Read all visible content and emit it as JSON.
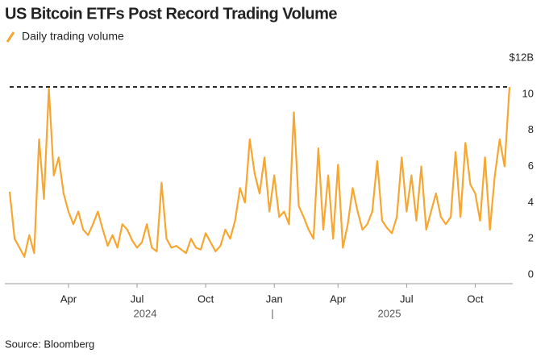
{
  "chart_data": {
    "type": "line",
    "title": "US Bitcoin ETFs Post Record Trading Volume",
    "source": "Source: Bloomberg",
    "series": [
      {
        "name": "Daily trading volume",
        "color": "#f7a631",
        "values": [
          4.6,
          2.0,
          1.5,
          1.0,
          2.2,
          1.2,
          7.5,
          4.2,
          10.3,
          5.5,
          6.5,
          4.5,
          3.5,
          2.8,
          3.5,
          2.5,
          2.2,
          2.8,
          3.5,
          2.5,
          1.6,
          2.2,
          1.5,
          2.8,
          2.5,
          1.9,
          1.5,
          1.8,
          2.8,
          1.5,
          1.3,
          5.1,
          2.0,
          1.5,
          1.6,
          1.4,
          1.2,
          2.0,
          1.5,
          1.4,
          2.3,
          1.8,
          1.3,
          1.6,
          2.5,
          2.0,
          3.0,
          4.8,
          4.0,
          7.5,
          5.6,
          4.5,
          6.5,
          3.5,
          5.5,
          3.2,
          3.5,
          2.8,
          9.0,
          3.8,
          3.2,
          2.5,
          2.0,
          7.0,
          2.5,
          5.5,
          2.0,
          6.1,
          1.5,
          2.8,
          4.8,
          3.5,
          2.5,
          2.8,
          3.5,
          6.3,
          3.0,
          2.6,
          2.3,
          3.2,
          6.5,
          3.5,
          5.5,
          3.0,
          6.0,
          2.5,
          3.5,
          4.5,
          3.2,
          2.8,
          3.2,
          6.8,
          3.2,
          7.3,
          5.0,
          4.5,
          3.0,
          6.5,
          2.5,
          5.5,
          7.5,
          6.0,
          10.4
        ]
      }
    ],
    "categories": [
      null,
      null,
      null,
      null,
      null,
      null,
      null,
      null,
      null,
      null,
      null,
      null,
      "Apr",
      null,
      null,
      null,
      null,
      null,
      null,
      null,
      null,
      null,
      null,
      null,
      null,
      null,
      "Jul",
      null,
      null,
      null,
      null,
      null,
      null,
      null,
      null,
      null,
      null,
      null,
      null,
      null,
      "Oct",
      null,
      null,
      null,
      null,
      null,
      null,
      null,
      null,
      null,
      null,
      null,
      null,
      null,
      "Jan",
      null,
      null,
      null,
      null,
      null,
      null,
      null,
      null,
      null,
      null,
      null,
      null,
      "Apr",
      null,
      null,
      null,
      null,
      null,
      null,
      null,
      null,
      null,
      null,
      null,
      null,
      null,
      "Jul",
      null,
      null,
      null,
      null,
      null,
      null,
      null,
      null,
      null,
      null,
      null,
      null,
      null,
      "Oct",
      null,
      null,
      null,
      null,
      null,
      null,
      null
    ],
    "x_group_labels": [
      "2024",
      "2025"
    ],
    "reference_line": 10.4,
    "ylim": [
      0,
      12
    ],
    "yticks": [
      0,
      2,
      4,
      6,
      8,
      10,
      {
        "value": 12,
        "label": "$12B"
      }
    ]
  }
}
